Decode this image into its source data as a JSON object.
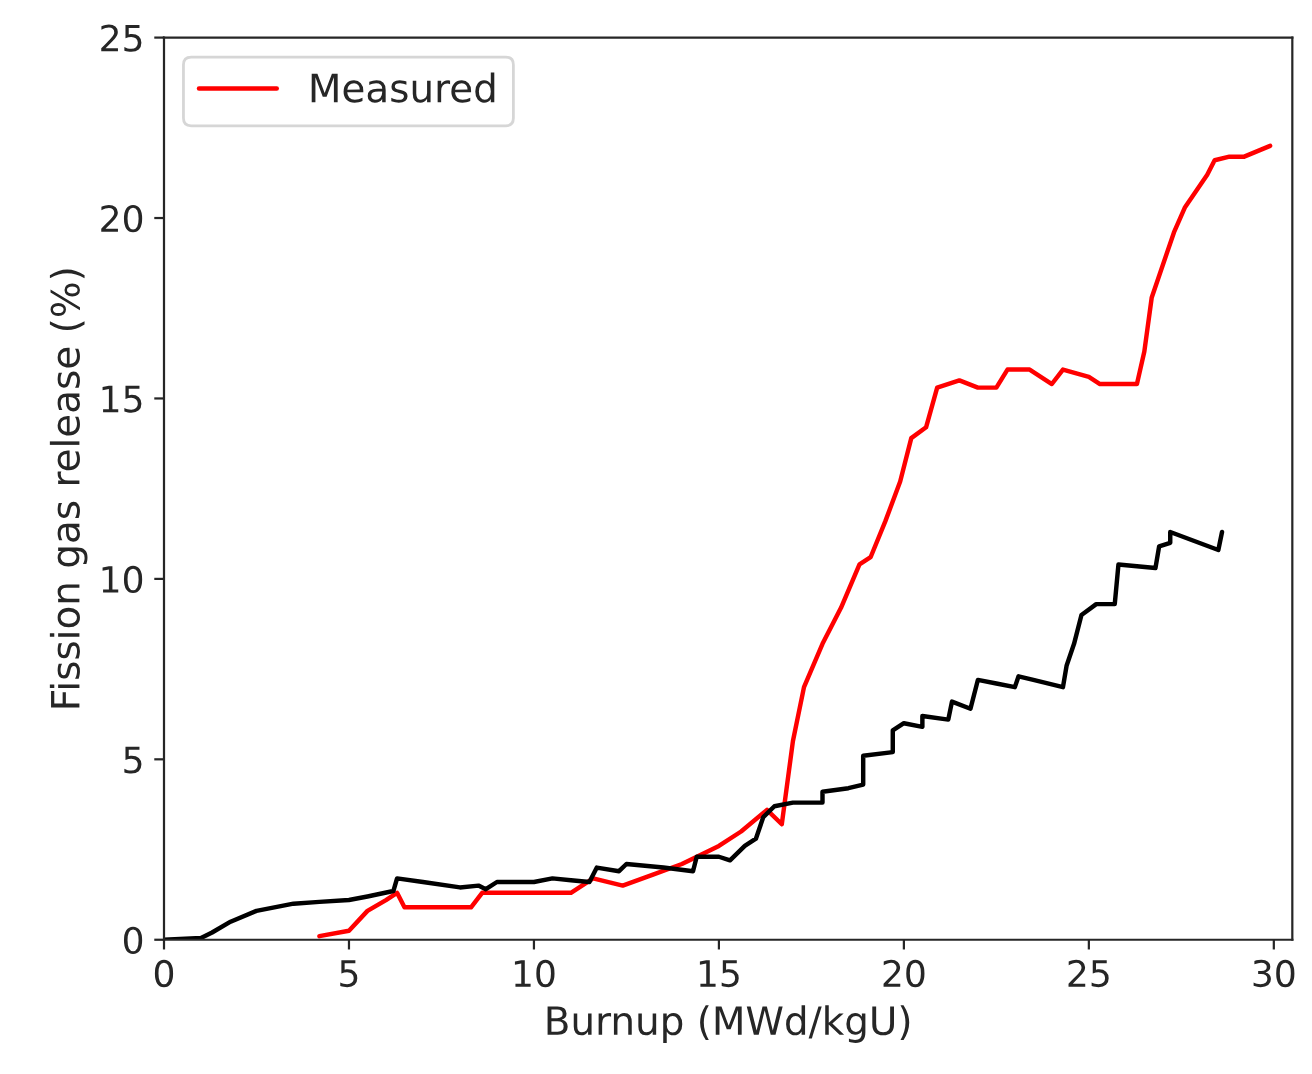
{
  "chart_data": {
    "type": "line",
    "xlabel": "Burnup (MWd/kgU)",
    "ylabel": "Fission gas release (%)",
    "xlim": [
      0,
      30.5
    ],
    "ylim": [
      0,
      25
    ],
    "xticks": [
      0,
      5,
      10,
      15,
      20,
      25,
      30
    ],
    "yticks": [
      0,
      5,
      10,
      15,
      20,
      25
    ],
    "grid": false,
    "legend": "top left",
    "series": [
      {
        "name": "Measured",
        "color": "#ff0000",
        "x": [
          4.2,
          5,
          5.5,
          6,
          6.3,
          6.5,
          8.3,
          8.6,
          11,
          11.6,
          12.4,
          13.2,
          14,
          15,
          15.6,
          16.3,
          16.7,
          17,
          17.3,
          17.8,
          18.3,
          18.8,
          19.1,
          19.5,
          19.9,
          20.2,
          20.6,
          20.9,
          21.5,
          22,
          22.5,
          22.8,
          23.4,
          24,
          24.3,
          25,
          25.3,
          26.3,
          26.5,
          26.7,
          27.3,
          27.6,
          28.2,
          28.4,
          28.8,
          29.2,
          29.9
        ],
        "values": [
          0.1,
          0.25,
          0.8,
          1.1,
          1.3,
          0.9,
          0.9,
          1.3,
          1.3,
          1.7,
          1.5,
          1.8,
          2.1,
          2.6,
          3.0,
          3.6,
          3.2,
          5.5,
          7,
          8.2,
          9.2,
          10.4,
          10.6,
          11.6,
          12.7,
          13.9,
          14.2,
          15.3,
          15.5,
          15.3,
          15.3,
          15.8,
          15.8,
          15.4,
          15.8,
          15.6,
          15.4,
          15.4,
          16.3,
          17.8,
          19.6,
          20.3,
          21.2,
          21.6,
          21.7,
          21.7,
          22.0
        ]
      },
      {
        "color": "#000000",
        "x": [
          0,
          1,
          1.3,
          1.8,
          2.5,
          3.5,
          4.2,
          5,
          5.5,
          6.2,
          6.3,
          7,
          8,
          8.5,
          8.7,
          9,
          10,
          10.5,
          11,
          11.5,
          11.7,
          12.3,
          12.5,
          13.5,
          14.3,
          14.4,
          15,
          15.3,
          15.7,
          16,
          16.2,
          16.5,
          17,
          17.8,
          17.8,
          18.5,
          18.9,
          18.9,
          19.7,
          19.7,
          20,
          20.5,
          20.5,
          21.2,
          21.3,
          21.8,
          22,
          22.5,
          23,
          23.1,
          23.5,
          24.3,
          24.4,
          24.6,
          24.8,
          25.2,
          25.7,
          25.8,
          26.8,
          26.9,
          27.2,
          27.2,
          28.5,
          28.6
        ],
        "values": [
          0,
          0.05,
          0.2,
          0.5,
          0.8,
          1.0,
          1.05,
          1.1,
          1.2,
          1.35,
          1.7,
          1.6,
          1.45,
          1.5,
          1.4,
          1.6,
          1.6,
          1.7,
          1.65,
          1.6,
          2.0,
          1.9,
          2.1,
          2.0,
          1.9,
          2.3,
          2.3,
          2.2,
          2.6,
          2.8,
          3.4,
          3.7,
          3.8,
          3.8,
          4.1,
          4.2,
          4.3,
          5.1,
          5.2,
          5.8,
          6.0,
          5.9,
          6.2,
          6.1,
          6.6,
          6.4,
          7.2,
          7.1,
          7.0,
          7.3,
          7.2,
          7.0,
          7.6,
          8.2,
          9.0,
          9.3,
          9.3,
          10.4,
          10.3,
          10.9,
          11.0,
          11.3,
          10.8,
          11.3
        ]
      }
    ]
  }
}
